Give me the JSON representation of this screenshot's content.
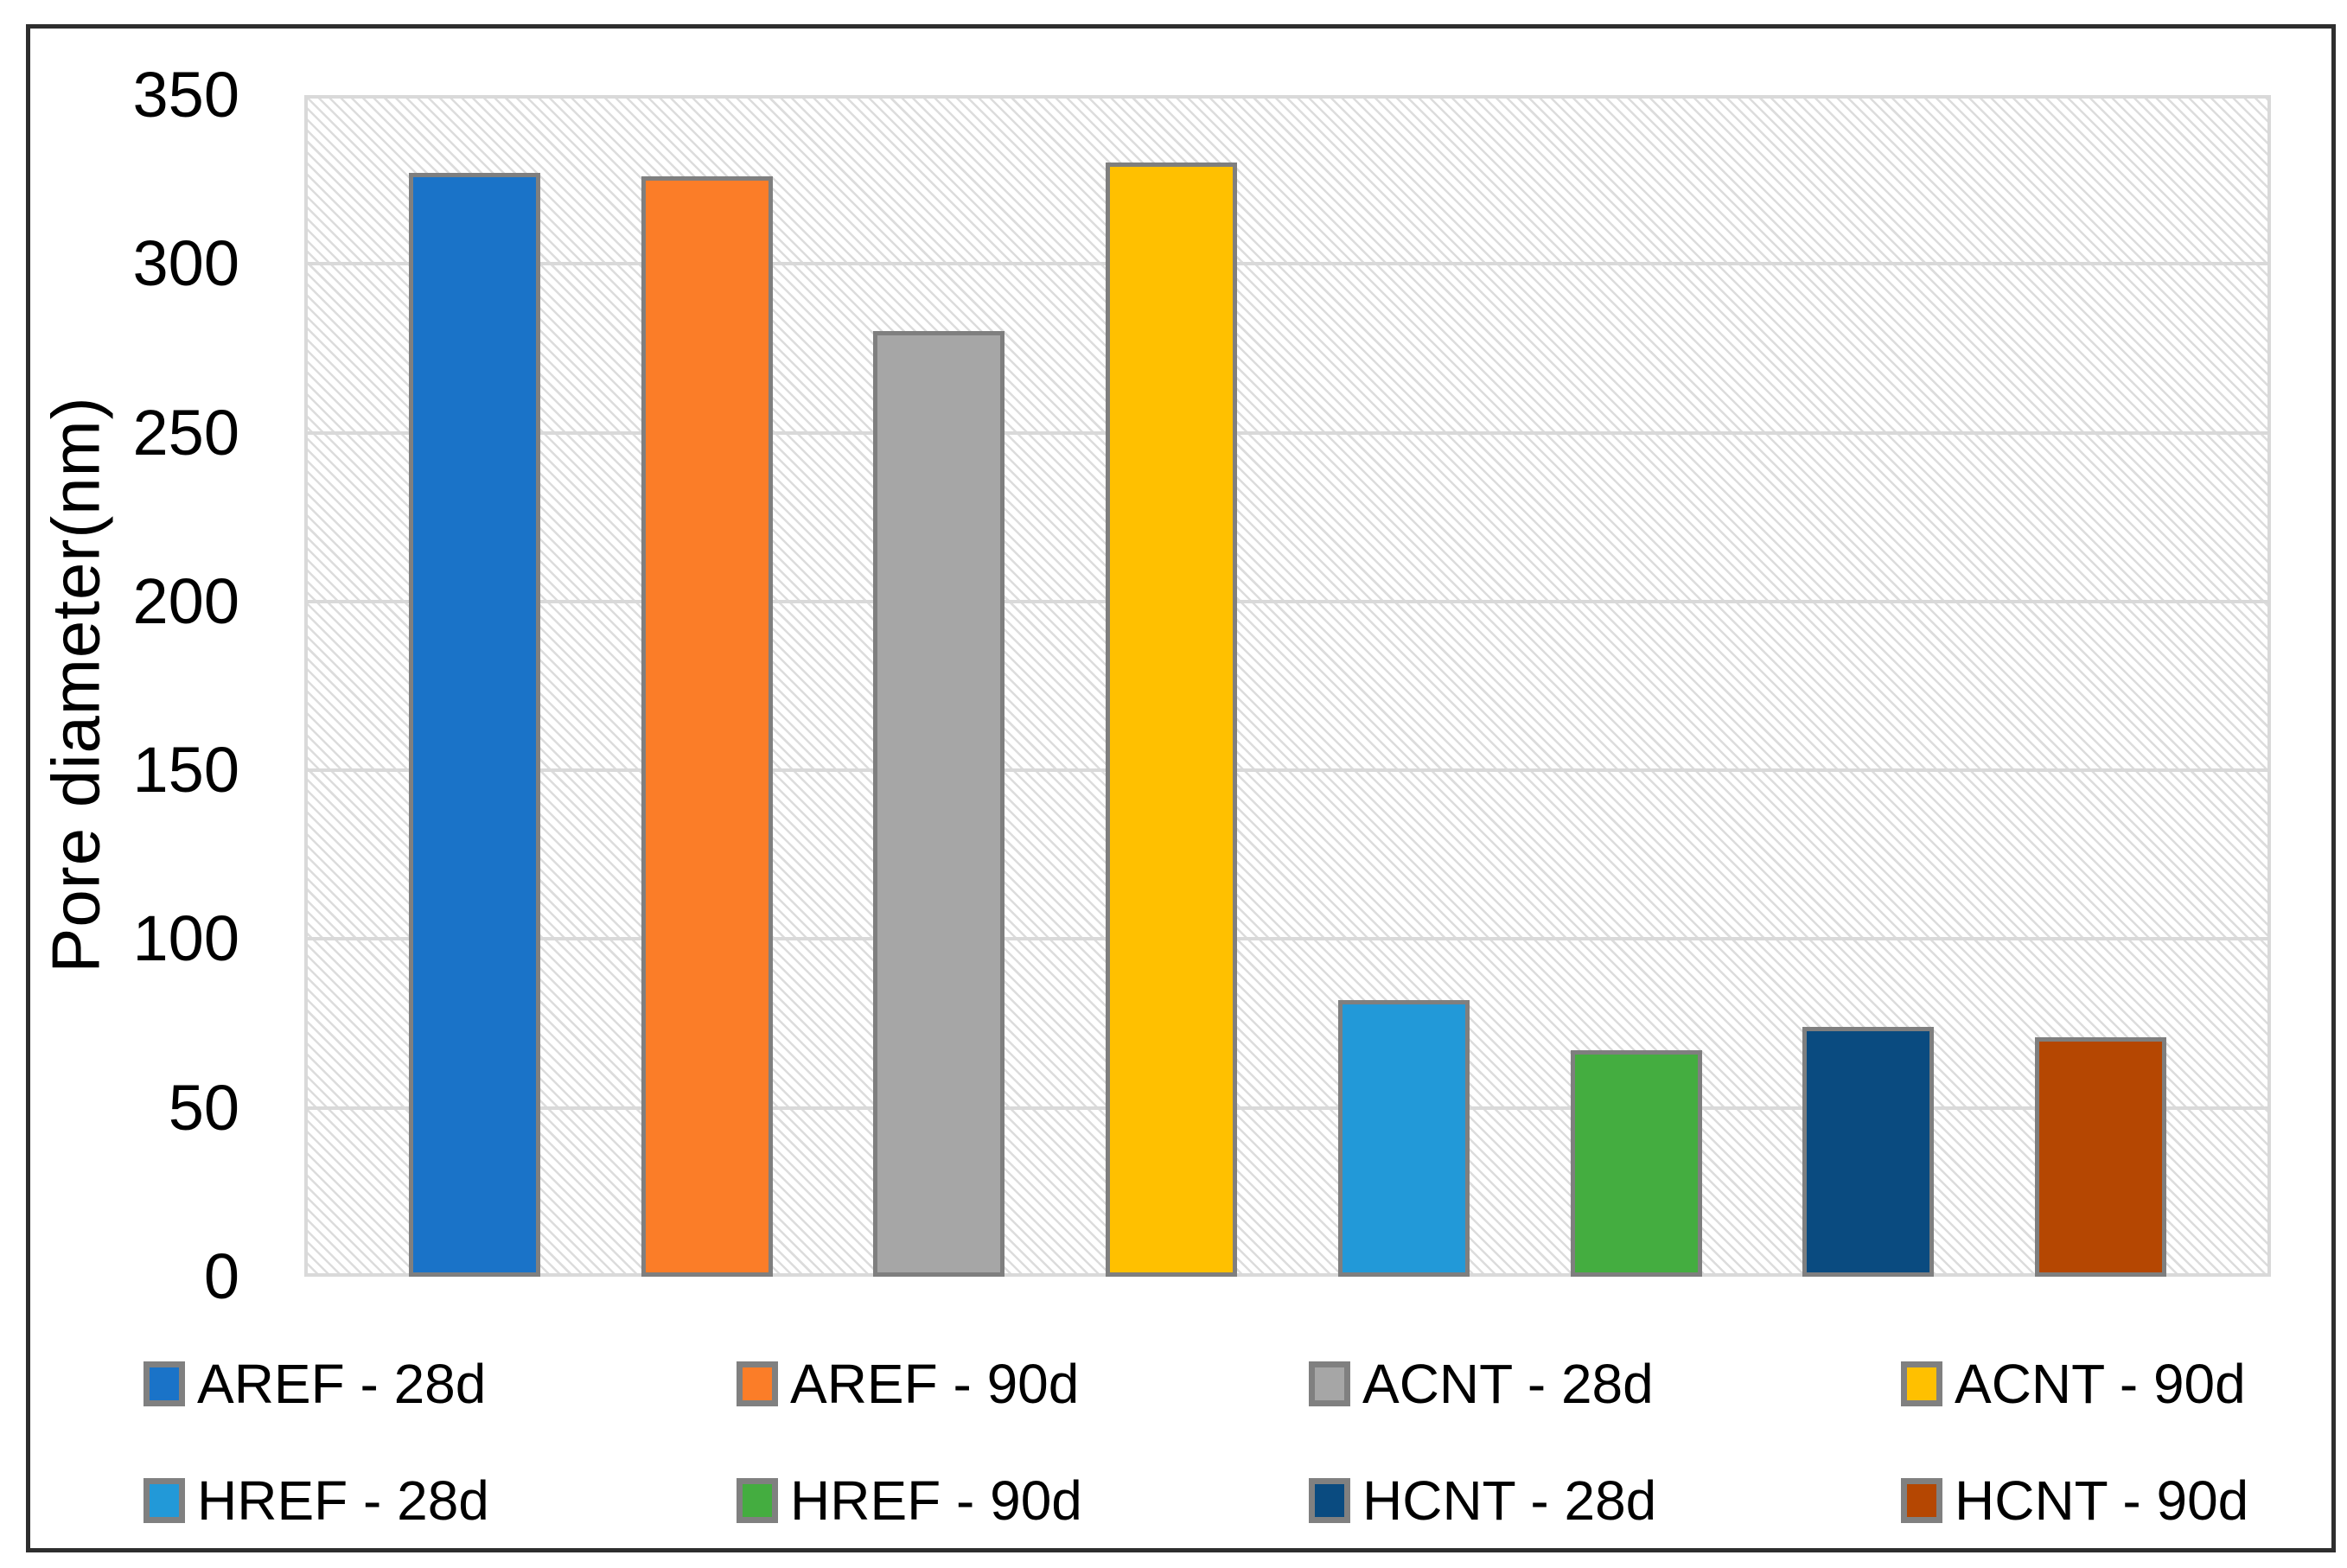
{
  "chart_data": {
    "type": "bar",
    "title": "",
    "xlabel": "",
    "ylabel": "Pore diameter(nm)",
    "ylim": [
      0,
      350
    ],
    "ytick_step": 50,
    "yticks": [
      350,
      300,
      250,
      200,
      150,
      100,
      50,
      0
    ],
    "grid": true,
    "grid_color": "#d9d9d9",
    "plot_hatch": "light-diagonal-down",
    "bar_border_color": "#7f7f7f",
    "legend_position": "bottom",
    "legend_rows": 2,
    "series": [
      {
        "name": "AREF - 28d",
        "value": 327,
        "color": "#1a73c8"
      },
      {
        "name": "AREF - 90d",
        "value": 326,
        "color": "#fb7d28"
      },
      {
        "name": "ACNT - 28d",
        "value": 280,
        "color": "#a6a6a6"
      },
      {
        "name": "ACNT - 90d",
        "value": 330,
        "color": "#ffc000"
      },
      {
        "name": "HREF - 28d",
        "value": 82,
        "color": "#2299d8"
      },
      {
        "name": "HREF - 90d",
        "value": 67,
        "color": "#44ad40"
      },
      {
        "name": "HCNT - 28d",
        "value": 74,
        "color": "#0a4b80"
      },
      {
        "name": "HCNT - 90d",
        "value": 71,
        "color": "#b54702"
      }
    ]
  }
}
